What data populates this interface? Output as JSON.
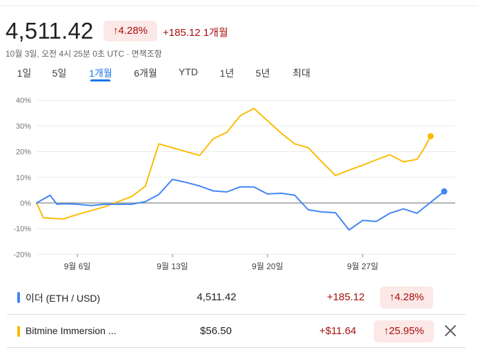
{
  "header": {
    "price": "4,511.42",
    "percent_badge": "↑4.28%",
    "change": "+185.12 1개월",
    "subtitle": "10월 3일, 오전 4시 25분 0초 UTC · 면책조항"
  },
  "tabs": [
    {
      "label": "1일",
      "active": false
    },
    {
      "label": "5일",
      "active": false
    },
    {
      "label": "1개월",
      "active": true
    },
    {
      "label": "6개월",
      "active": false
    },
    {
      "label": "YTD",
      "active": false
    },
    {
      "label": "1년",
      "active": false
    },
    {
      "label": "5년",
      "active": false
    },
    {
      "label": "최대",
      "active": false
    }
  ],
  "chart_data": {
    "type": "line",
    "ylim": [
      -20,
      40
    ],
    "y_ticks": [
      40,
      30,
      20,
      10,
      0,
      -10,
      -20
    ],
    "y_tick_labels": [
      "40%",
      "30%",
      "20%",
      "10%",
      "0%",
      "-10%",
      "-20%"
    ],
    "x_tick_labels": [
      {
        "day": 6,
        "label": "9월 6일"
      },
      {
        "day": 13,
        "label": "9월 13일"
      },
      {
        "day": 20,
        "label": "9월 20일"
      },
      {
        "day": 27,
        "label": "9월 27일"
      }
    ],
    "grid": "horizontal",
    "series": [
      {
        "name": "이더 (ETH / USD)",
        "color": "#4285f4",
        "x": [
          3,
          4,
          4.5,
          5,
          6,
          7,
          8,
          9,
          10,
          11,
          12,
          13,
          14,
          15,
          16,
          17,
          18,
          19,
          20,
          21,
          22,
          23,
          24,
          25,
          26,
          27,
          28,
          29,
          30,
          31,
          33
        ],
        "values": [
          0,
          3,
          -0.5,
          -0.3,
          -0.5,
          -1,
          -0.5,
          -0.5,
          -0.5,
          0.5,
          3.3,
          9.2,
          8,
          6.6,
          4.7,
          4.3,
          6.3,
          6.2,
          3.5,
          3.8,
          3,
          -2.7,
          -3.5,
          -3.8,
          -10.5,
          -6.8,
          -7.2,
          -4,
          -2.3,
          -4,
          4.5
        ]
      },
      {
        "name": "Bitmine Immersion ...",
        "color": "#fbbc04",
        "x": [
          3,
          3.5,
          5,
          6,
          7,
          8,
          9,
          10,
          11,
          12,
          13,
          14,
          15,
          16,
          17,
          18,
          19,
          20,
          21,
          22,
          23,
          24,
          25,
          26,
          27,
          28,
          29,
          30,
          31,
          31.5,
          32
        ],
        "values": [
          0,
          -5.8,
          -6.2,
          -4.5,
          -3,
          -1.5,
          0.5,
          2.5,
          6.5,
          23,
          21.5,
          20,
          18.5,
          25,
          27.5,
          34,
          36.8,
          32,
          27.2,
          23,
          21.5,
          16,
          10.7,
          12.8,
          14.7,
          16.8,
          18.8,
          16,
          17,
          21,
          26
        ]
      }
    ]
  },
  "rows": [
    {
      "name": "이더 (ETH / USD)",
      "value": "4,511.42",
      "change": "+185.12",
      "percent": "↑4.28%",
      "color": "#4285f4"
    },
    {
      "name": "Bitmine Immersion ...",
      "value": "$56.50",
      "change": "+$11.64",
      "percent": "↑25.95%",
      "color": "#fbbc04"
    }
  ],
  "icons": {
    "remove": "close-icon"
  }
}
